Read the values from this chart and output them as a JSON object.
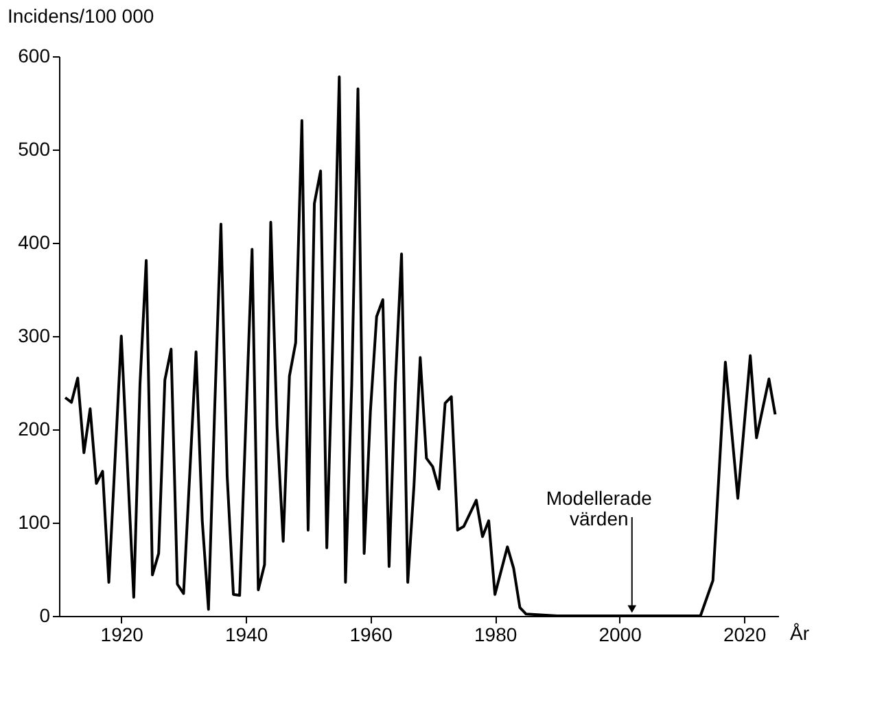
{
  "chart_data": {
    "type": "line",
    "xlabel": "År",
    "ylabel": "Incidens/100 000",
    "x": [
      1911,
      1912,
      1913,
      1914,
      1915,
      1916,
      1917,
      1918,
      1920,
      1922,
      1923,
      1924,
      1925,
      1926,
      1927,
      1928,
      1929,
      1930,
      1932,
      1933,
      1934,
      1935,
      1936,
      1937,
      1938,
      1939,
      1941,
      1942,
      1943,
      1944,
      1945,
      1946,
      1947,
      1948,
      1949,
      1950,
      1951,
      1952,
      1953,
      1954,
      1955,
      1956,
      1957,
      1958,
      1959,
      1960,
      1961,
      1962,
      1963,
      1964,
      1965,
      1966,
      1967,
      1968,
      1969,
      1970,
      1971,
      1972,
      1973,
      1974,
      1975,
      1977,
      1978,
      1979,
      1980,
      1982,
      1983,
      1984,
      1985,
      1990,
      2000,
      2010,
      2013,
      2015,
      2017,
      2019,
      2021,
      2022,
      2024,
      2025
    ],
    "values": [
      234,
      229,
      255,
      175,
      222,
      142,
      155,
      36,
      300,
      20,
      248,
      381,
      44,
      67,
      253,
      286,
      34,
      24,
      283,
      102,
      7,
      223,
      420,
      150,
      23,
      22,
      393,
      28,
      55,
      422,
      204,
      80,
      257,
      293,
      531,
      92,
      442,
      477,
      73,
      307,
      578,
      36,
      248,
      565,
      67,
      219,
      321,
      339,
      53,
      248,
      388,
      36,
      140,
      277,
      169,
      160,
      136,
      228,
      235,
      92,
      96,
      124,
      85,
      102,
      23,
      74,
      51,
      9,
      2,
      0,
      0,
      0,
      0,
      38,
      272,
      126,
      279,
      191,
      254,
      216
    ],
    "color": "#000000",
    "xlim": [
      1910,
      2025.5
    ],
    "xticks": [
      1920,
      1940,
      1960,
      1980,
      2000,
      2020
    ],
    "ylim": [
      0,
      600
    ],
    "yticks": [
      0,
      100,
      200,
      300,
      400,
      500,
      600
    ],
    "grid": false,
    "marker": "none",
    "line_style": "solid",
    "annotations": [
      {
        "text": "Modellerade värden",
        "x": 2002,
        "y": 0
      }
    ]
  }
}
